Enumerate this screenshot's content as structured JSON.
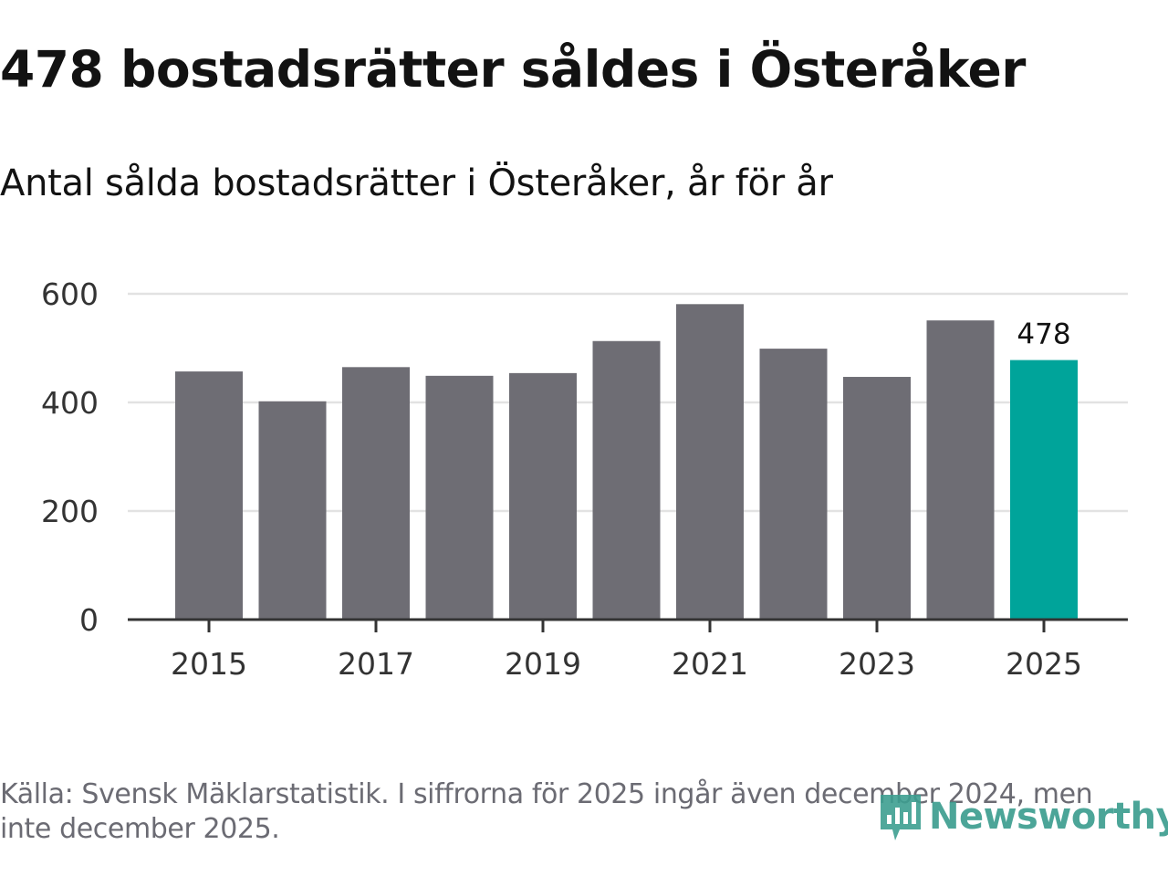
{
  "header": {
    "title": "478 bostadsrätter såldes i Österåker",
    "subtitle": "Antal sålda bostadsrätter i Österåker, år för år"
  },
  "footer": {
    "source": "Källa: Svensk Mäklarstatistik. I siffrorna för 2025 ingår även december 2024, men inte december 2025.",
    "logo_text": "Newsworthy"
  },
  "colors": {
    "bar": "#6e6d74",
    "highlight": "#00a49a",
    "grid": "#e2e2e2",
    "axis": "#333333",
    "logo": "#3d9e90"
  },
  "chart_data": {
    "type": "bar",
    "title": "478 bostadsrätter såldes i Österåker",
    "subtitle": "Antal sålda bostadsrätter i Österåker, år för år",
    "xlabel": "",
    "ylabel": "",
    "categories": [
      "2015",
      "2016",
      "2017",
      "2018",
      "2019",
      "2020",
      "2021",
      "2022",
      "2023",
      "2024",
      "2025"
    ],
    "values": [
      457,
      402,
      465,
      449,
      454,
      513,
      581,
      499,
      447,
      551,
      478
    ],
    "highlight_index": 10,
    "value_labels": [
      {
        "index": 10,
        "text": "478"
      }
    ],
    "x_tick_labels": [
      "2015",
      "2017",
      "2019",
      "2021",
      "2023",
      "2025"
    ],
    "y_ticks": [
      0,
      200,
      400,
      600
    ],
    "y_tick_labels": [
      "0",
      "200",
      "400",
      "600"
    ],
    "ylim": [
      0,
      600
    ],
    "grid": true
  }
}
